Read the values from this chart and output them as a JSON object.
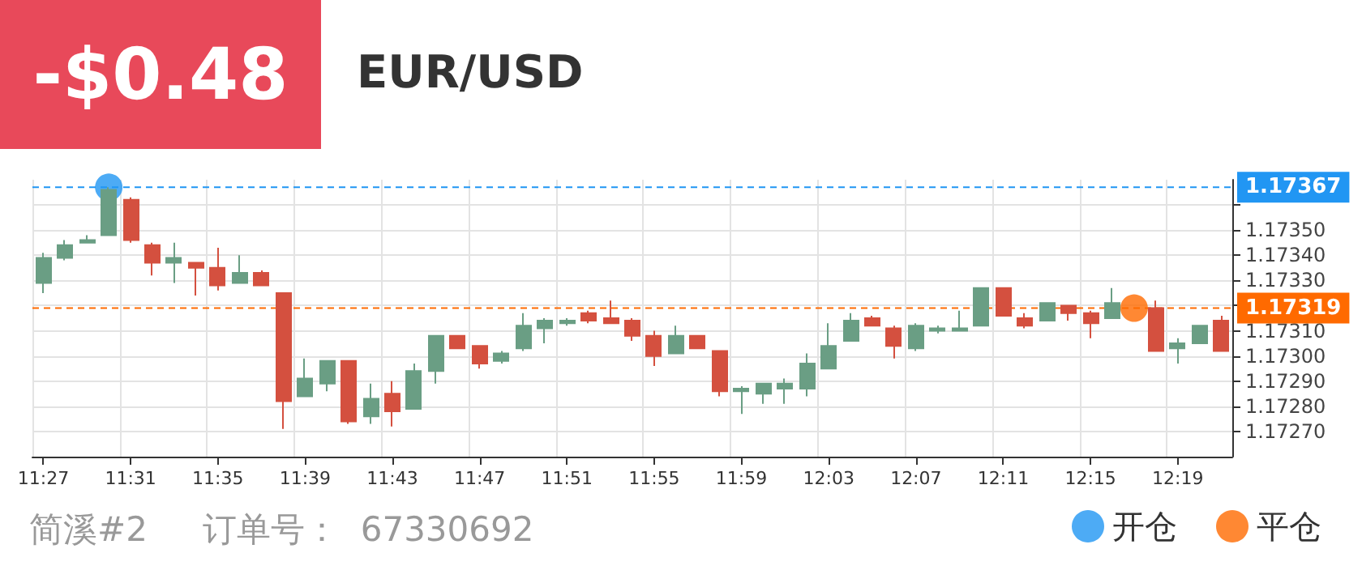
{
  "chart_data": {
    "type": "candlestick",
    "title": "EUR/USD",
    "subtitle": "-$0.48",
    "annotations": [
      "简溪#2",
      "订单号：  67330692"
    ],
    "categories": [
      "11:27",
      null,
      null,
      null,
      "11:31",
      null,
      null,
      null,
      "11:35",
      null,
      null,
      null,
      "11:39",
      null,
      null,
      null,
      "11:43",
      null,
      null,
      null,
      "11:47",
      null,
      null,
      null,
      "11:51",
      null,
      null,
      null,
      "11:55",
      null,
      null,
      null,
      "11:59",
      null,
      null,
      null,
      "12:03",
      null,
      null,
      null,
      "12:07",
      null,
      null,
      null,
      "12:11",
      null,
      null,
      null,
      "12:15",
      null,
      null,
      null,
      "12:19",
      null,
      null
    ],
    "ohlc": [
      [
        1.17329,
        1.17341,
        1.17325,
        1.17339
      ],
      [
        1.17339,
        1.17346,
        1.17338,
        1.17344
      ],
      [
        1.17345,
        1.17348,
        1.17345,
        1.17346
      ],
      [
        1.17348,
        1.17367,
        1.17348,
        1.17366
      ],
      [
        1.17362,
        1.17363,
        1.17345,
        1.17346
      ],
      [
        1.17344,
        1.17345,
        1.17332,
        1.17337
      ],
      [
        1.17337,
        1.17345,
        1.17329,
        1.17339
      ],
      [
        1.17337,
        1.17337,
        1.17324,
        1.17335
      ],
      [
        1.17335,
        1.17343,
        1.17326,
        1.17328
      ],
      [
        1.17329,
        1.1734,
        1.17329,
        1.17333
      ],
      [
        1.17333,
        1.17334,
        1.17328,
        1.17328
      ],
      [
        1.17325,
        1.17325,
        1.17271,
        1.17282
      ],
      [
        1.17284,
        1.17299,
        1.17284,
        1.17291
      ],
      [
        1.17289,
        1.17298,
        1.17286,
        1.17298
      ],
      [
        1.17298,
        1.17298,
        1.17273,
        1.17274
      ],
      [
        1.17276,
        1.17289,
        1.17273,
        1.17283
      ],
      [
        1.17285,
        1.1729,
        1.17272,
        1.17278
      ],
      [
        1.17279,
        1.17297,
        1.17279,
        1.17294
      ],
      [
        1.17294,
        1.17308,
        1.17289,
        1.17308
      ],
      [
        1.17308,
        1.17308,
        1.17303,
        1.17303
      ],
      [
        1.17304,
        1.17304,
        1.17295,
        1.17297
      ],
      [
        1.17298,
        1.17302,
        1.17297,
        1.17301
      ],
      [
        1.17303,
        1.17317,
        1.17302,
        1.17312
      ],
      [
        1.17311,
        1.17315,
        1.17305,
        1.17314
      ],
      [
        1.17313,
        1.17315,
        1.17312,
        1.17314
      ],
      [
        1.17317,
        1.17318,
        1.17313,
        1.17314
      ],
      [
        1.17315,
        1.17322,
        1.17313,
        1.17313
      ],
      [
        1.17314,
        1.17315,
        1.17306,
        1.17308
      ],
      [
        1.17308,
        1.1731,
        1.17296,
        1.173
      ],
      [
        1.17301,
        1.17312,
        1.17301,
        1.17308
      ],
      [
        1.17308,
        1.17308,
        1.17303,
        1.17303
      ],
      [
        1.17302,
        1.17302,
        1.17284,
        1.17286
      ],
      [
        1.17286,
        1.17288,
        1.17277,
        1.17287
      ],
      [
        1.17285,
        1.17289,
        1.17281,
        1.17289
      ],
      [
        1.17287,
        1.17291,
        1.17281,
        1.17289
      ],
      [
        1.17287,
        1.17301,
        1.17284,
        1.17297
      ],
      [
        1.17295,
        1.17313,
        1.17295,
        1.17304
      ],
      [
        1.17306,
        1.17317,
        1.17306,
        1.17314
      ],
      [
        1.17315,
        1.17316,
        1.17312,
        1.17312
      ],
      [
        1.17311,
        1.17312,
        1.17299,
        1.17304
      ],
      [
        1.17303,
        1.17313,
        1.17302,
        1.17312
      ],
      [
        1.1731,
        1.17312,
        1.17309,
        1.17311
      ],
      [
        1.1731,
        1.17318,
        1.1731,
        1.17311
      ],
      [
        1.17312,
        1.17327,
        1.17312,
        1.17327
      ],
      [
        1.17327,
        1.17327,
        1.17316,
        1.17316
      ],
      [
        1.17315,
        1.17317,
        1.17311,
        1.17312
      ],
      [
        1.17314,
        1.17321,
        1.17314,
        1.17321
      ],
      [
        1.1732,
        1.1732,
        1.17314,
        1.17317
      ],
      [
        1.17317,
        1.17318,
        1.17307,
        1.17313
      ],
      [
        1.17315,
        1.17327,
        1.17315,
        1.17321
      ],
      null,
      [
        1.17319,
        1.17322,
        1.17302,
        1.17302
      ],
      [
        1.17303,
        1.17307,
        1.17297,
        1.17305
      ],
      [
        1.17305,
        1.17312,
        1.17305,
        1.17312
      ],
      [
        1.17314,
        1.17316,
        1.17302,
        1.17302
      ]
    ],
    "colors": [
      "#6a9e84",
      "#6a9e84",
      "#6a9e84",
      "#6a9e84",
      "#d4503f",
      "#d4503f",
      "#6a9e84",
      "#d4503f",
      "#d4503f",
      "#6a9e84",
      "#d4503f",
      "#d4503f",
      "#6a9e84",
      "#6a9e84",
      "#d4503f",
      "#6a9e84",
      "#d4503f",
      "#6a9e84",
      "#6a9e84",
      "#d4503f",
      "#d4503f",
      "#6a9e84",
      "#6a9e84",
      "#6a9e84",
      "#6a9e84",
      "#d4503f",
      "#d4503f",
      "#d4503f",
      "#d4503f",
      "#6a9e84",
      "#d4503f",
      "#d4503f",
      "#6a9e84",
      "#6a9e84",
      "#6a9e84",
      "#6a9e84",
      "#6a9e84",
      "#6a9e84",
      "#d4503f",
      "#d4503f",
      "#6a9e84",
      "#6a9e84",
      "#6a9e84",
      "#6a9e84",
      "#d4503f",
      "#d4503f",
      "#6a9e84",
      "#d4503f",
      "#d4503f",
      "#6a9e84",
      null,
      "#d4503f",
      "#6a9e84",
      "#6a9e84",
      "#d4503f"
    ],
    "series": [
      {
        "type": "scatter",
        "name": "开仓",
        "color": "#2196f3",
        "values": [
          null,
          null,
          null,
          1.17367,
          null,
          null,
          null,
          null,
          null,
          null,
          null,
          null,
          null,
          null,
          null,
          null,
          null,
          null,
          null,
          null,
          null,
          null,
          null,
          null,
          null,
          null,
          null,
          null,
          null,
          null,
          null,
          null,
          null,
          null,
          null,
          null,
          null,
          null,
          null,
          null,
          null,
          null,
          null,
          null,
          null,
          null,
          null,
          null,
          null,
          null,
          null,
          null,
          null,
          null,
          null
        ]
      },
      {
        "type": "scatter",
        "name": "平仓",
        "color": "#ff6a00",
        "values": [
          null,
          null,
          null,
          null,
          null,
          null,
          null,
          null,
          null,
          null,
          null,
          null,
          null,
          null,
          null,
          null,
          null,
          null,
          null,
          null,
          null,
          null,
          null,
          null,
          null,
          null,
          null,
          null,
          null,
          null,
          null,
          null,
          null,
          null,
          null,
          null,
          null,
          null,
          null,
          null,
          null,
          null,
          null,
          null,
          null,
          null,
          null,
          null,
          null,
          null,
          1.17319,
          null,
          null,
          null,
          null
        ]
      }
    ],
    "marker": "circle",
    "ylim": [
      1.1726,
      1.1737
    ],
    "yticks": [
      {
        "value": 1.1727,
        "label": "1.17270"
      },
      {
        "value": 1.1728,
        "label": "1.17280"
      },
      {
        "value": 1.1729,
        "label": "1.17290"
      },
      {
        "value": 1.173,
        "label": "1.17300"
      },
      {
        "value": 1.1731,
        "label": "1.17310"
      },
      {
        "value": 1.1732,
        "label": null
      },
      {
        "value": 1.1733,
        "label": "1.17330"
      },
      {
        "value": 1.1734,
        "label": "1.17340"
      },
      {
        "value": 1.1735,
        "label": "1.17350"
      },
      {
        "value": 1.1736,
        "label": null
      }
    ],
    "ref_lines": [
      {
        "axis": "y",
        "value": 1.17367,
        "label": "1.17367",
        "color": "#2196f3",
        "line_style": "dashed"
      },
      {
        "axis": "y",
        "value": 1.17319,
        "label": "1.17319",
        "color": "#ff6a00",
        "line_style": "dashed"
      }
    ],
    "grid": true,
    "legend": "bottom right"
  }
}
